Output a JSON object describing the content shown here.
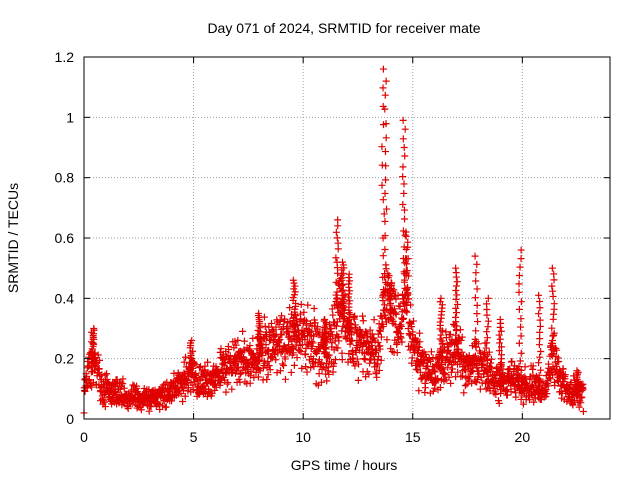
{
  "chart_data": {
    "type": "scatter",
    "title": "Day 071 of 2024, SRMTID for receiver mate",
    "xlabel": "GPS time / hours",
    "ylabel": "SRMTID / TECUs",
    "xlim": [
      0,
      24
    ],
    "ylim": [
      0,
      1.2
    ],
    "x_ticks": [
      0,
      5,
      10,
      15,
      20
    ],
    "x_tick_labels": [
      "0",
      "5",
      "10",
      "15",
      "20"
    ],
    "y_ticks": [
      0,
      0.2,
      0.4,
      0.6,
      0.8,
      1.0,
      1.2
    ],
    "y_tick_labels": [
      "0",
      "0.2",
      "0.4",
      "0.6",
      "0.8",
      "1",
      "1.2"
    ],
    "grid": true,
    "marker": "plus",
    "color": "#e00000",
    "series": [
      {
        "name": "SRMTID",
        "envelope": [
          [
            0.0,
            0.1,
            0.06
          ],
          [
            0.2,
            0.16,
            0.07
          ],
          [
            0.5,
            0.19,
            0.08
          ],
          [
            0.8,
            0.12,
            0.06
          ],
          [
            1.2,
            0.09,
            0.04
          ],
          [
            1.6,
            0.08,
            0.04
          ],
          [
            2.0,
            0.07,
            0.035
          ],
          [
            2.5,
            0.075,
            0.035
          ],
          [
            3.0,
            0.065,
            0.03
          ],
          [
            3.5,
            0.07,
            0.035
          ],
          [
            4.0,
            0.09,
            0.04
          ],
          [
            4.5,
            0.13,
            0.05
          ],
          [
            4.8,
            0.16,
            0.06
          ],
          [
            5.2,
            0.12,
            0.05
          ],
          [
            5.8,
            0.13,
            0.05
          ],
          [
            6.4,
            0.17,
            0.06
          ],
          [
            7.0,
            0.2,
            0.07
          ],
          [
            7.5,
            0.18,
            0.06
          ],
          [
            8.0,
            0.22,
            0.08
          ],
          [
            8.5,
            0.24,
            0.09
          ],
          [
            9.0,
            0.25,
            0.09
          ],
          [
            9.5,
            0.27,
            0.1
          ],
          [
            10.0,
            0.26,
            0.1
          ],
          [
            10.5,
            0.25,
            0.1
          ],
          [
            11.0,
            0.22,
            0.09
          ],
          [
            11.4,
            0.28,
            0.1
          ],
          [
            11.7,
            0.36,
            0.12
          ],
          [
            12.0,
            0.3,
            0.1
          ],
          [
            12.5,
            0.27,
            0.1
          ],
          [
            13.0,
            0.24,
            0.09
          ],
          [
            13.4,
            0.22,
            0.08
          ],
          [
            13.7,
            0.38,
            0.12
          ],
          [
            14.0,
            0.34,
            0.12
          ],
          [
            14.3,
            0.29,
            0.1
          ],
          [
            14.7,
            0.42,
            0.13
          ],
          [
            15.0,
            0.26,
            0.1
          ],
          [
            15.5,
            0.17,
            0.07
          ],
          [
            16.0,
            0.15,
            0.06
          ],
          [
            16.5,
            0.2,
            0.08
          ],
          [
            17.0,
            0.22,
            0.08
          ],
          [
            17.5,
            0.16,
            0.06
          ],
          [
            18.0,
            0.19,
            0.07
          ],
          [
            18.5,
            0.15,
            0.06
          ],
          [
            19.0,
            0.12,
            0.05
          ],
          [
            19.5,
            0.14,
            0.05
          ],
          [
            20.0,
            0.1,
            0.05
          ],
          [
            20.5,
            0.12,
            0.05
          ],
          [
            21.0,
            0.09,
            0.04
          ],
          [
            21.4,
            0.22,
            0.08
          ],
          [
            21.8,
            0.12,
            0.05
          ],
          [
            22.2,
            0.09,
            0.04
          ],
          [
            22.8,
            0.08,
            0.04
          ]
        ],
        "spikes": [
          [
            0.4,
            0.3
          ],
          [
            4.9,
            0.26
          ],
          [
            8.0,
            0.35
          ],
          [
            9.6,
            0.46
          ],
          [
            11.0,
            0.33
          ],
          [
            11.55,
            0.66
          ],
          [
            11.8,
            0.52
          ],
          [
            12.1,
            0.48
          ],
          [
            13.65,
            1.16
          ],
          [
            13.75,
            1.12
          ],
          [
            14.0,
            0.45
          ],
          [
            14.6,
            0.99
          ],
          [
            14.75,
            0.62
          ],
          [
            16.3,
            0.4
          ],
          [
            17.0,
            0.5
          ],
          [
            17.9,
            0.54
          ],
          [
            18.4,
            0.4
          ],
          [
            19.0,
            0.33
          ],
          [
            19.9,
            0.56
          ],
          [
            20.8,
            0.41
          ],
          [
            21.4,
            0.5
          ],
          [
            22.5,
            0.16
          ]
        ]
      }
    ]
  }
}
